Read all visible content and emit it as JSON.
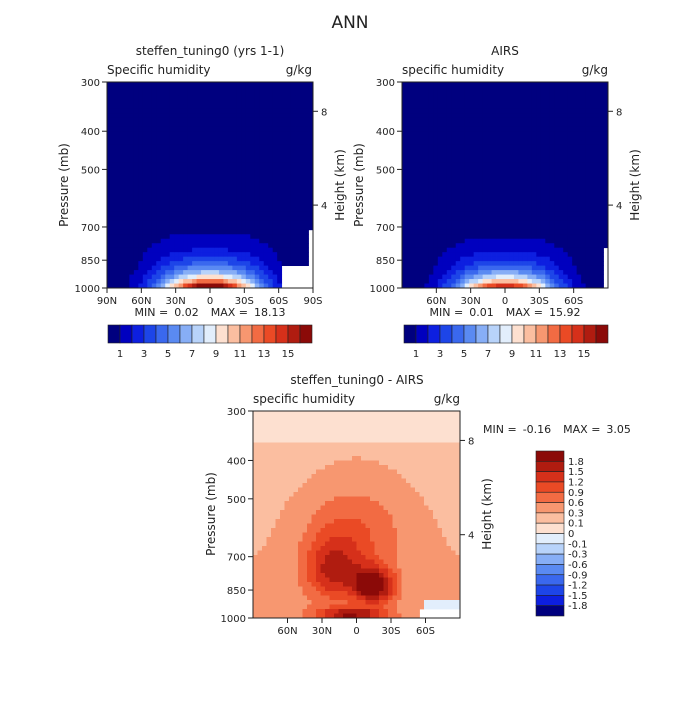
{
  "figure": {
    "title": "ANN"
  },
  "chart_data": [
    {
      "type": "heatmap",
      "title": "steffen_tuning0 (yrs 1-1)",
      "variable": "Specific humidity",
      "units": "g/kg",
      "ylabel": "Pressure (mb)",
      "ylabel_right": "Height (km)",
      "y_ticks": [
        "300",
        "400",
        "500",
        "700",
        "850",
        "1000"
      ],
      "y_ticks_right": [
        "8",
        "4"
      ],
      "x_ticks": [
        "90N",
        "60N",
        "30N",
        "0",
        "30S",
        "60S",
        "90S"
      ],
      "x_range": [
        "90N",
        "90S"
      ],
      "y_range": [
        1000,
        300
      ],
      "stats": {
        "min_label": "MIN =",
        "min": "0.02",
        "max_label": "MAX =",
        "max": "18.13"
      },
      "colorbar_labels": [
        "1",
        "3",
        "5",
        "7",
        "9",
        "11",
        "13",
        "15"
      ],
      "colorbar_orientation": "horizontal",
      "peak_value_approx": 18.13,
      "levels": [
        0,
        1,
        2,
        3,
        4,
        5,
        6,
        7,
        8,
        9,
        10,
        11,
        12,
        13,
        14,
        15,
        16
      ],
      "colors": [
        "#00007f",
        "#0000bf",
        "#0d1fe0",
        "#1d45e8",
        "#3a68ee",
        "#5a8af2",
        "#87aef6",
        "#b8d3fa",
        "#e2eefc",
        "#fde0d0",
        "#fbbea0",
        "#f79770",
        "#f26b43",
        "#ea4a25",
        "#d6301a",
        "#b01c10",
        "#8b0a08"
      ]
    },
    {
      "type": "heatmap",
      "title": "AIRS",
      "variable": "specific humidity",
      "units": "g/kg",
      "ylabel": "Pressure (mb)",
      "ylabel_right": "Height (km)",
      "y_ticks": [
        "300",
        "400",
        "500",
        "700",
        "850",
        "1000"
      ],
      "y_ticks_right": [
        "8",
        "4"
      ],
      "x_ticks": [
        "60N",
        "30N",
        "0",
        "30S",
        "60S"
      ],
      "y_range": [
        1000,
        300
      ],
      "stats": {
        "min_label": "MIN =",
        "min": "0.01",
        "max_label": "MAX =",
        "max": "15.92"
      },
      "colorbar_labels": [
        "1",
        "3",
        "5",
        "7",
        "9",
        "11",
        "13",
        "15"
      ],
      "colorbar_orientation": "horizontal",
      "peak_value_approx": 15.92
    },
    {
      "type": "heatmap",
      "title": "steffen_tuning0 - AIRS",
      "variable": "specific humidity",
      "units": "g/kg",
      "ylabel": "Pressure (mb)",
      "ylabel_right": "Height (km)",
      "y_ticks": [
        "300",
        "400",
        "500",
        "700",
        "850",
        "1000"
      ],
      "y_ticks_right": [
        "8",
        "4"
      ],
      "x_ticks": [
        "60N",
        "30N",
        "0",
        "30S",
        "60S"
      ],
      "y_range": [
        1000,
        300
      ],
      "stats": {
        "min_label": "MIN =",
        "min": "-0.16",
        "max_label": "MAX =",
        "max": "3.05"
      },
      "colorbar_labels": [
        "1.8",
        "1.5",
        "1.2",
        "0.9",
        "0.6",
        "0.3",
        "0.1",
        "0",
        "-0.1",
        "-0.3",
        "-0.6",
        "-0.9",
        "-1.2",
        "-1.5",
        "-1.8"
      ],
      "colorbar_orientation": "vertical",
      "colors": [
        "#8b0a08",
        "#b01c10",
        "#d6301a",
        "#ea4a25",
        "#f26b43",
        "#f79770",
        "#fbbea0",
        "#fde0d0",
        "#e2eefc",
        "#b8d3fa",
        "#87aef6",
        "#5a8af2",
        "#3a68ee",
        "#1d45e8",
        "#0d1fe0",
        "#00007f"
      ]
    }
  ]
}
